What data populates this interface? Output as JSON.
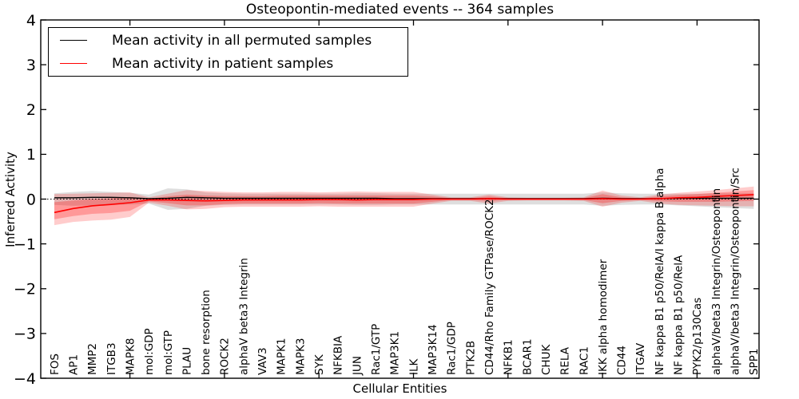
{
  "chart_data": {
    "type": "line",
    "title": "Osteopontin-mediated events -- 364 samples",
    "xlabel": "Cellular Entities",
    "ylabel": "Inferred Activity",
    "ylim": [
      -4,
      4
    ],
    "grid": false,
    "legend_position": "upper-left",
    "zero_line_style": "dotted",
    "ytick_labels": [
      "4",
      "3",
      "2",
      "1",
      "0",
      "−1",
      "−2",
      "−3",
      "−4"
    ],
    "ytick_values": [
      4,
      3,
      2,
      1,
      0,
      -1,
      -2,
      -3,
      -4
    ],
    "x_major_tick_indices": [
      4,
      9,
      14,
      19,
      24,
      29,
      34
    ],
    "categories": [
      "FOS",
      "AP1",
      "MMP2",
      "ITGB3",
      "MAPK8",
      "mol:GDP",
      "mol:GTP",
      "PLAU",
      "bone resorption",
      "ROCK2",
      "alphaV beta3 Integrin",
      "VAV3",
      "MAPK1",
      "MAPK3",
      "SYK",
      "NFKBIA",
      "JUN",
      "Rac1/GTP",
      "MAP3K1",
      "ILK",
      "MAP3K14",
      "Rac1/GDP",
      "PTK2B",
      "CD44/Rho Family GTPase/ROCK2",
      "NFKB1",
      "BCAR1",
      "CHUK",
      "RELA",
      "RAC1",
      "IKK alpha homodimer",
      "CD44",
      "ITGAV",
      "NF kappa B1 p50/RelA/I kappa B alpha",
      "NF kappa B1 p50/RelA",
      "PYK2/p130Cas",
      "alphaV/beta3 Integrin/Osteopontin",
      "alphaV/beta3 Integrin/Osteopontin/Src",
      "SPP1"
    ],
    "series": [
      {
        "name": "Mean activity in all permuted samples",
        "color": "#000000",
        "values": [
          0.03,
          0.03,
          0.04,
          0.04,
          0.03,
          0.01,
          0.02,
          0.04,
          0.03,
          0.02,
          0.02,
          0.02,
          0.02,
          0.02,
          0.02,
          0.02,
          0.02,
          0.02,
          0.01,
          0.01,
          0.01,
          0.01,
          0.01,
          0.01,
          0.01,
          0.01,
          0.01,
          0.01,
          0.01,
          0.02,
          0.01,
          0.01,
          0.01,
          0.02,
          0.02,
          0.02,
          0.02,
          0.02
        ]
      },
      {
        "name": "Mean activity in patient samples",
        "color": "#ff0000",
        "values": [
          -0.3,
          -0.21,
          -0.15,
          -0.12,
          -0.08,
          -0.02,
          -0.02,
          -0.03,
          -0.04,
          -0.03,
          -0.02,
          -0.02,
          -0.02,
          -0.02,
          -0.01,
          -0.01,
          -0.02,
          -0.01,
          -0.01,
          -0.01,
          0.0,
          0.0,
          0.0,
          0.01,
          0.0,
          0.0,
          0.0,
          0.0,
          0.0,
          0.01,
          0.0,
          0.0,
          0.01,
          0.03,
          0.04,
          0.06,
          0.08,
          0.1
        ]
      }
    ],
    "bands": [
      {
        "name": "permuted-range",
        "color": "rgba(0,0,0,0.13)",
        "top": [
          0.13,
          0.16,
          0.18,
          0.16,
          0.14,
          0.1,
          0.24,
          0.22,
          0.15,
          0.13,
          0.12,
          0.12,
          0.12,
          0.12,
          0.12,
          0.12,
          0.13,
          0.13,
          0.12,
          0.12,
          0.12,
          0.12,
          0.12,
          0.12,
          0.12,
          0.12,
          0.12,
          0.12,
          0.12,
          0.15,
          0.13,
          0.12,
          0.12,
          0.12,
          0.12,
          0.13,
          0.13,
          0.13
        ],
        "bottom": [
          -0.13,
          -0.15,
          -0.14,
          -0.13,
          -0.12,
          -0.1,
          -0.24,
          -0.22,
          -0.15,
          -0.13,
          -0.12,
          -0.12,
          -0.12,
          -0.12,
          -0.12,
          -0.12,
          -0.13,
          -0.13,
          -0.12,
          -0.12,
          -0.12,
          -0.12,
          -0.12,
          -0.12,
          -0.12,
          -0.12,
          -0.12,
          -0.12,
          -0.12,
          -0.15,
          -0.13,
          -0.12,
          -0.12,
          -0.14,
          -0.16,
          -0.18,
          -0.2,
          -0.22
        ]
      },
      {
        "name": "patient-range-outer",
        "color": "rgba(255,0,0,0.20)",
        "top": [
          0.11,
          0.12,
          0.13,
          0.14,
          0.15,
          0.04,
          0.12,
          0.2,
          0.18,
          0.16,
          0.15,
          0.15,
          0.16,
          0.16,
          0.15,
          0.16,
          0.17,
          0.16,
          0.16,
          0.16,
          0.1,
          0.04,
          0.04,
          0.1,
          0.04,
          0.03,
          0.03,
          0.03,
          0.04,
          0.19,
          0.08,
          0.04,
          0.1,
          0.14,
          0.17,
          0.2,
          0.24,
          0.28
        ],
        "bottom": [
          -0.58,
          -0.51,
          -0.48,
          -0.46,
          -0.4,
          -0.08,
          -0.15,
          -0.23,
          -0.22,
          -0.18,
          -0.17,
          -0.17,
          -0.17,
          -0.17,
          -0.16,
          -0.17,
          -0.17,
          -0.17,
          -0.17,
          -0.17,
          -0.1,
          -0.04,
          -0.04,
          -0.1,
          -0.04,
          -0.03,
          -0.03,
          -0.03,
          -0.04,
          -0.17,
          -0.08,
          -0.04,
          -0.1,
          -0.13,
          -0.14,
          -0.15,
          -0.16,
          -0.16
        ]
      },
      {
        "name": "patient-range-inner",
        "color": "rgba(255,0,0,0.25)",
        "top": [
          -0.07,
          -0.03,
          0.0,
          0.02,
          0.05,
          0.01,
          0.06,
          0.1,
          0.08,
          0.07,
          0.07,
          0.07,
          0.08,
          0.08,
          0.08,
          0.08,
          0.08,
          0.08,
          0.08,
          0.08,
          0.06,
          0.02,
          0.02,
          0.06,
          0.02,
          0.02,
          0.02,
          0.02,
          0.02,
          0.11,
          0.04,
          0.02,
          0.06,
          0.09,
          0.11,
          0.14,
          0.17,
          0.2
        ],
        "bottom": [
          -0.45,
          -0.38,
          -0.33,
          -0.31,
          -0.26,
          -0.05,
          -0.09,
          -0.14,
          -0.14,
          -0.11,
          -0.1,
          -0.1,
          -0.1,
          -0.1,
          -0.09,
          -0.1,
          -0.1,
          -0.1,
          -0.1,
          -0.1,
          -0.06,
          -0.02,
          -0.02,
          -0.05,
          -0.02,
          -0.02,
          -0.02,
          -0.02,
          -0.02,
          -0.09,
          -0.04,
          -0.02,
          -0.05,
          -0.06,
          -0.06,
          -0.06,
          -0.05,
          -0.04
        ]
      }
    ]
  }
}
